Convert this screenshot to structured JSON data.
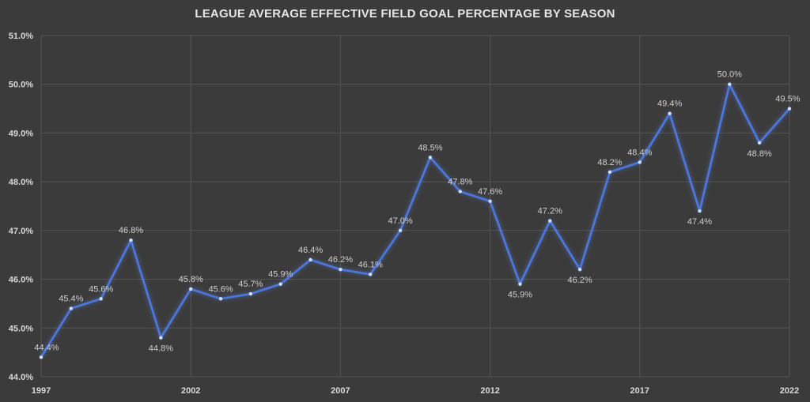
{
  "chart_data": {
    "type": "line",
    "title": "LEAGUE AVERAGE EFFECTIVE FIELD GOAL PERCENTAGE BY SEASON",
    "xlabel": "",
    "ylabel": "",
    "x": [
      1997,
      1998,
      1999,
      2000,
      2001,
      2002,
      2003,
      2004,
      2005,
      2006,
      2007,
      2008,
      2009,
      2010,
      2011,
      2012,
      2013,
      2014,
      2015,
      2016,
      2017,
      2018,
      2019,
      2020,
      2021,
      2022
    ],
    "series": [
      {
        "name": "eFG%",
        "values": [
          44.4,
          45.4,
          45.6,
          46.8,
          44.8,
          45.8,
          45.6,
          45.7,
          45.9,
          46.4,
          46.2,
          46.1,
          47.0,
          48.5,
          47.8,
          47.6,
          45.9,
          47.2,
          46.2,
          48.2,
          48.4,
          49.4,
          47.4,
          50.0,
          48.8,
          49.5
        ],
        "labels": [
          "44.4%",
          "45.4%",
          "45.6%",
          "46.8%",
          "44.8%",
          "45.8%",
          "45.6%",
          "45.7%",
          "45.9%",
          "46.4%",
          "46.2%",
          "46.1%",
          "47.0%",
          "48.5%",
          "47.8%",
          "47.6%",
          "45.9%",
          "47.2%",
          "46.2%",
          "48.2%",
          "48.4%",
          "49.4%",
          "47.4%",
          "50.0%",
          "48.8%",
          "49.5%"
        ],
        "label_position": [
          "above",
          "above",
          "above",
          "above",
          "below",
          "above",
          "above",
          "above",
          "above",
          "above",
          "above",
          "above",
          "above",
          "above",
          "above",
          "above",
          "below",
          "above",
          "below",
          "above",
          "above",
          "above",
          "below",
          "above",
          "below",
          "above"
        ]
      }
    ],
    "xticks": [
      1997,
      2002,
      2007,
      2012,
      2017,
      2022
    ],
    "xtick_labels": [
      "1997",
      "2002",
      "2007",
      "2012",
      "2017",
      "2022"
    ],
    "yticks": [
      44.0,
      45.0,
      46.0,
      47.0,
      48.0,
      49.0,
      50.0,
      51.0
    ],
    "ytick_labels": [
      "44.0%",
      "45.0%",
      "46.0%",
      "47.0%",
      "48.0%",
      "49.0%",
      "50.0%",
      "51.0%"
    ],
    "ylim": [
      44.0,
      51.0
    ],
    "xlim": [
      1997,
      2022
    ],
    "grid": true,
    "colors": {
      "background": "#3b3b3b",
      "line": "#4a78e0",
      "glow": "#5f8cff",
      "grid": "#555555",
      "text": "#d9d9d9"
    }
  }
}
